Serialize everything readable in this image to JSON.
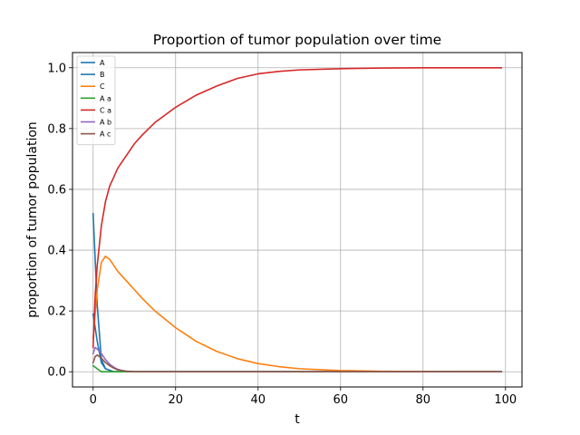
{
  "chart_data": {
    "type": "line",
    "title": "Proportion of tumor population over time",
    "xlabel": "t",
    "ylabel": "proportion of tumor population",
    "xlim": [
      -5,
      104
    ],
    "ylim": [
      -0.05,
      1.05
    ],
    "xticks": [
      0,
      20,
      40,
      60,
      80,
      100
    ],
    "yticks": [
      0.0,
      0.2,
      0.4,
      0.6,
      0.8,
      1.0
    ],
    "xtick_labels": [
      "0",
      "20",
      "40",
      "60",
      "80",
      "100"
    ],
    "ytick_labels": [
      "0.0",
      "0.2",
      "0.4",
      "0.6",
      "0.8",
      "1.0"
    ],
    "grid": true,
    "legend_position": "top-left",
    "series": [
      {
        "name": "A",
        "color": "#1f77b4",
        "x": [
          0,
          1,
          2,
          3,
          5,
          8,
          20,
          99
        ],
        "y": [
          0.52,
          0.22,
          0.04,
          0.01,
          0.0,
          0.0,
          0.0,
          0.0
        ]
      },
      {
        "name": "B",
        "color": "#1f77b4",
        "x": [
          0,
          1,
          2,
          3,
          5,
          8,
          20,
          99
        ],
        "y": [
          0.19,
          0.1,
          0.03,
          0.01,
          0.0,
          0.0,
          0.0,
          0.0
        ]
      },
      {
        "name": "C",
        "color": "#ff7f0e",
        "x": [
          0,
          1,
          2,
          3,
          4,
          5,
          6,
          8,
          10,
          12,
          15,
          20,
          25,
          30,
          35,
          40,
          45,
          50,
          60,
          70,
          80,
          90,
          99
        ],
        "y": [
          0.11,
          0.27,
          0.36,
          0.38,
          0.37,
          0.35,
          0.33,
          0.3,
          0.27,
          0.24,
          0.2,
          0.145,
          0.1,
          0.067,
          0.043,
          0.027,
          0.017,
          0.01,
          0.004,
          0.0015,
          0.0005,
          0.0002,
          0.0001
        ]
      },
      {
        "name": "A a",
        "color": "#2ca02c",
        "x": [
          0,
          1,
          2,
          3,
          5,
          99
        ],
        "y": [
          0.02,
          0.01,
          0.0,
          0.0,
          0.0,
          0.0
        ]
      },
      {
        "name": "C a",
        "color": "#d62728",
        "x": [
          0,
          0.5,
          1,
          2,
          3,
          4,
          5,
          6,
          8,
          10,
          12,
          15,
          20,
          25,
          30,
          35,
          40,
          45,
          50,
          60,
          70,
          80,
          90,
          99
        ],
        "y": [
          0.08,
          0.25,
          0.35,
          0.48,
          0.56,
          0.61,
          0.64,
          0.67,
          0.71,
          0.75,
          0.78,
          0.82,
          0.87,
          0.91,
          0.94,
          0.965,
          0.98,
          0.988,
          0.993,
          0.997,
          0.999,
          1.0,
          1.0,
          1.0
        ]
      },
      {
        "name": "A b",
        "color": "#9467bd",
        "x": [
          0,
          0.5,
          1,
          2,
          3,
          4,
          5,
          6,
          7,
          8,
          10,
          99
        ],
        "y": [
          0.06,
          0.08,
          0.075,
          0.06,
          0.04,
          0.025,
          0.015,
          0.008,
          0.004,
          0.002,
          0.0,
          0.0
        ]
      },
      {
        "name": "A c",
        "color": "#8c564b",
        "x": [
          0,
          0.5,
          1,
          2,
          3,
          4,
          5,
          6,
          8,
          10,
          99
        ],
        "y": [
          0.03,
          0.05,
          0.055,
          0.045,
          0.03,
          0.02,
          0.012,
          0.006,
          0.002,
          0.0,
          0.0
        ]
      }
    ]
  }
}
